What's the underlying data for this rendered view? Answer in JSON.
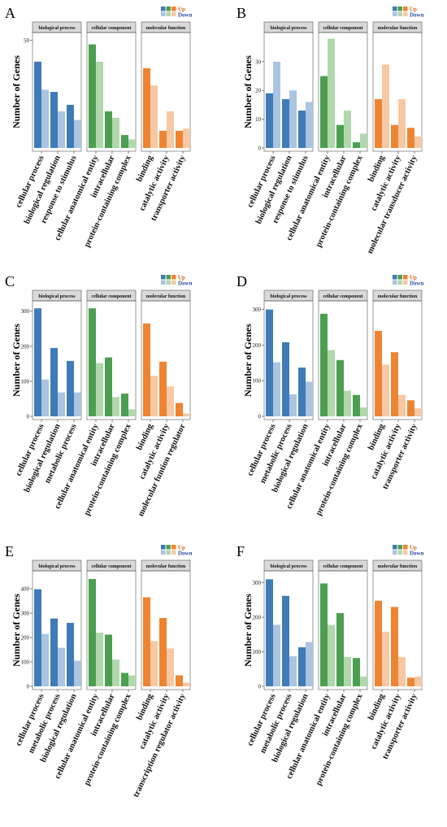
{
  "figure": {
    "legend": {
      "up_label": "Up",
      "down_label": "Down",
      "up_colors": [
        "#3F7BB6",
        "#4C9F50",
        "#EE8432"
      ],
      "down_colors": [
        "#AAC4E2",
        "#B1D7AD",
        "#F6C8A4"
      ],
      "up_text_color": "#D2691E",
      "down_text_color": "#2B4FA0"
    }
  },
  "chart_data": [
    {
      "panel": "A",
      "type": "bar",
      "ylabel": "Number of Genes",
      "yticks": [
        50
      ],
      "ylim": [
        0,
        52
      ],
      "facets": [
        {
          "title": "biological process",
          "categories": [
            "cellular process",
            "biological regulation",
            "response to stimulus"
          ],
          "up": [
            40,
            26,
            20
          ],
          "down": [
            27,
            17,
            13
          ]
        },
        {
          "title": "cellular component",
          "categories": [
            "cellular anatomical entity",
            "intracellular",
            "protein-containing complex"
          ],
          "up": [
            48,
            17,
            6
          ],
          "down": [
            40,
            14,
            4
          ]
        },
        {
          "title": "molecular function",
          "categories": [
            "binding",
            "catalytic activity",
            "transporter activity"
          ],
          "up": [
            37,
            8,
            8
          ],
          "down": [
            29,
            17,
            9
          ]
        }
      ]
    },
    {
      "panel": "B",
      "type": "bar",
      "ylabel": "Number of Genes",
      "yticks": [
        0,
        10,
        20,
        30
      ],
      "ylim": [
        0,
        39
      ],
      "facets": [
        {
          "title": "biological process",
          "categories": [
            "cellular process",
            "biological regulation",
            "response to stimulus"
          ],
          "up": [
            19,
            17,
            13
          ],
          "down": [
            30,
            20,
            16
          ]
        },
        {
          "title": "cellular component",
          "categories": [
            "cellular anatomical entity",
            "intracellular",
            "protein-containing complex"
          ],
          "up": [
            25,
            8,
            2
          ],
          "down": [
            38,
            13,
            5
          ]
        },
        {
          "title": "molecular function",
          "categories": [
            "binding",
            "catalytic activity",
            "molecular transducer activity"
          ],
          "up": [
            17,
            8,
            7
          ],
          "down": [
            29,
            17,
            4
          ]
        }
      ]
    },
    {
      "panel": "C",
      "type": "bar",
      "ylabel": "Number of Genes",
      "yticks": [
        0,
        100,
        200,
        300
      ],
      "ylim": [
        0,
        320
      ],
      "facets": [
        {
          "title": "biological process",
          "categories": [
            "cellular process",
            "biological regulation",
            "metabolic process"
          ],
          "up": [
            308,
            195,
            158
          ],
          "down": [
            105,
            68,
            68
          ]
        },
        {
          "title": "cellular component",
          "categories": [
            "cellular anatomical entity",
            "intracellular",
            "protein-containing complex"
          ],
          "up": [
            308,
            168,
            65
          ],
          "down": [
            152,
            55,
            20
          ]
        },
        {
          "title": "molecular function",
          "categories": [
            "binding",
            "catalytic activity",
            "molecular funtion regulator"
          ],
          "up": [
            265,
            156,
            38
          ],
          "down": [
            116,
            85,
            8
          ]
        }
      ]
    },
    {
      "panel": "D",
      "type": "bar",
      "ylabel": "Number of Genes",
      "yticks": [
        0,
        100,
        200,
        300
      ],
      "ylim": [
        0,
        315
      ],
      "facets": [
        {
          "title": "biological process",
          "categories": [
            "cellular process",
            "metabolic process",
            "biological regulation"
          ],
          "up": [
            300,
            208,
            137
          ],
          "down": [
            152,
            62,
            97
          ]
        },
        {
          "title": "cellular component",
          "categories": [
            "cellular anatomical entity",
            "intracellular",
            "protein-containing complex"
          ],
          "up": [
            288,
            158,
            60
          ],
          "down": [
            186,
            72,
            25
          ]
        },
        {
          "title": "molecular function",
          "categories": [
            "binding",
            "catalytic activity",
            "transporter activity"
          ],
          "up": [
            240,
            180,
            45
          ],
          "down": [
            145,
            60,
            22
          ]
        }
      ]
    },
    {
      "panel": "E",
      "type": "bar",
      "ylabel": "Number of Genes",
      "yticks": [
        0,
        100,
        200,
        300,
        400
      ],
      "ylim": [
        0,
        460
      ],
      "facets": [
        {
          "title": "biological process",
          "categories": [
            "cellular process",
            "metabolic process",
            "biological regulation"
          ],
          "up": [
            398,
            278,
            260
          ],
          "down": [
            215,
            158,
            105
          ]
        },
        {
          "title": "cellular component",
          "categories": [
            "cellular anatomical entity",
            "intracellular",
            "protein-containing complex"
          ],
          "up": [
            440,
            212,
            55
          ],
          "down": [
            220,
            110,
            45
          ]
        },
        {
          "title": "molecular function",
          "categories": [
            "binding",
            "catalytic activity",
            "transcription regulator activity"
          ],
          "up": [
            365,
            280,
            45
          ],
          "down": [
            185,
            155,
            15
          ]
        }
      ]
    },
    {
      "panel": "F",
      "type": "bar",
      "ylabel": "Number of Genes",
      "yticks": [
        0,
        100,
        200,
        300
      ],
      "ylim": [
        0,
        325
      ],
      "facets": [
        {
          "title": "biological process",
          "categories": [
            "cellular process",
            "metabolic process",
            "biological regulation"
          ],
          "up": [
            310,
            262,
            113
          ],
          "down": [
            178,
            87,
            128
          ]
        },
        {
          "title": "cellular component",
          "categories": [
            "cellular anatomical entity",
            "intracellular",
            "protein-containing complex"
          ],
          "up": [
            298,
            212,
            82
          ],
          "down": [
            178,
            85,
            28
          ]
        },
        {
          "title": "molecular function",
          "categories": [
            "binding",
            "catalytic activity",
            "transporter activity"
          ],
          "up": [
            248,
            230,
            25
          ],
          "down": [
            158,
            85,
            28
          ]
        }
      ]
    }
  ]
}
